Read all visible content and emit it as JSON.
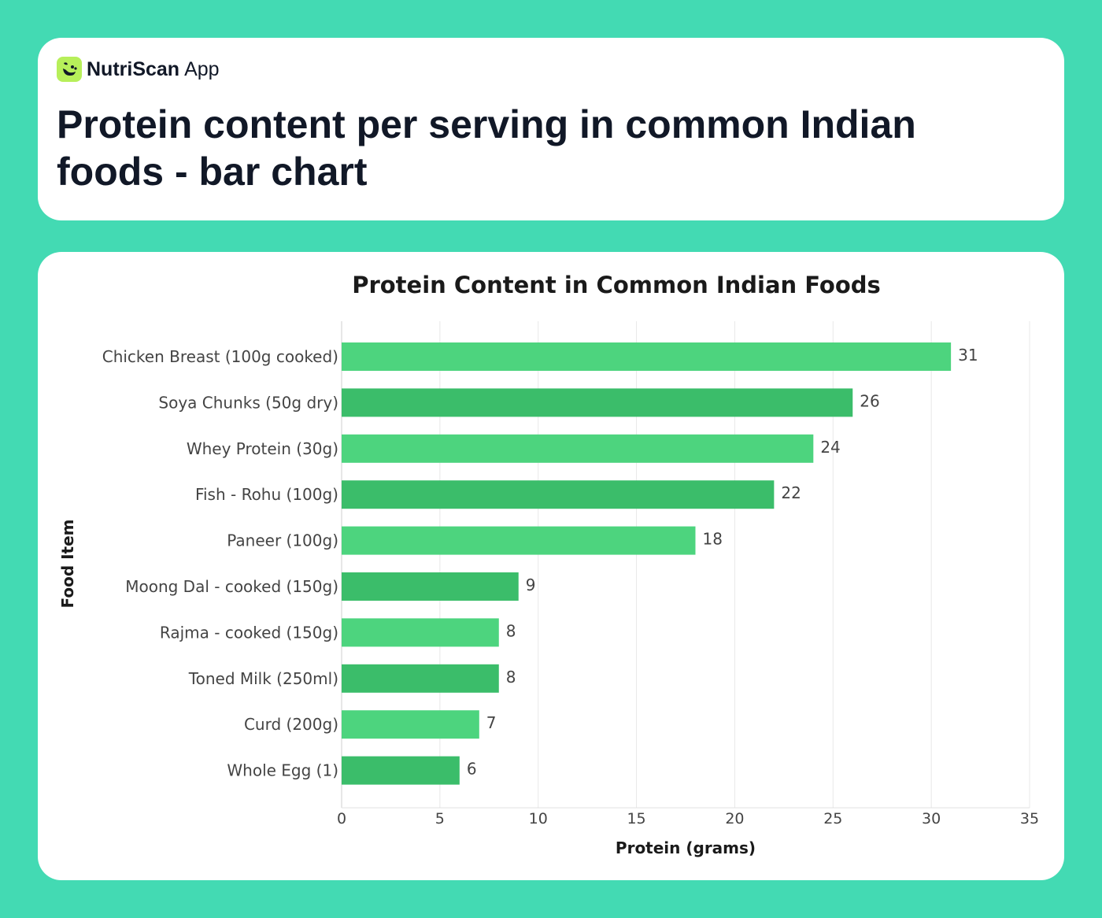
{
  "brand": {
    "name": "NutriScan",
    "suffix": "App",
    "icon": "smiley-leaf-icon"
  },
  "page_title": "Protein content per serving in common Indian foods - bar chart",
  "colors": {
    "background": "#43dab3",
    "bar_primary": "#4dd47e",
    "bar_secondary": "#3bbd6a",
    "grid": "#e8e8e8"
  },
  "chart_data": {
    "type": "bar",
    "orientation": "horizontal",
    "title": "Protein Content in Common Indian Foods",
    "xlabel": "Protein (grams)",
    "ylabel": "Food Item",
    "xlim": [
      0,
      35
    ],
    "xticks": [
      0,
      5,
      10,
      15,
      20,
      25,
      30,
      35
    ],
    "grid": true,
    "categories": [
      "Chicken Breast (100g cooked)",
      "Soya Chunks (50g dry)",
      "Whey Protein (30g)",
      "Fish - Rohu (100g)",
      "Paneer (100g)",
      "Moong Dal - cooked (150g)",
      "Rajma - cooked (150g)",
      "Toned Milk (250ml)",
      "Curd (200g)",
      "Whole Egg (1)"
    ],
    "values": [
      31,
      26,
      24,
      22,
      18,
      9,
      8,
      8,
      7,
      6
    ]
  }
}
